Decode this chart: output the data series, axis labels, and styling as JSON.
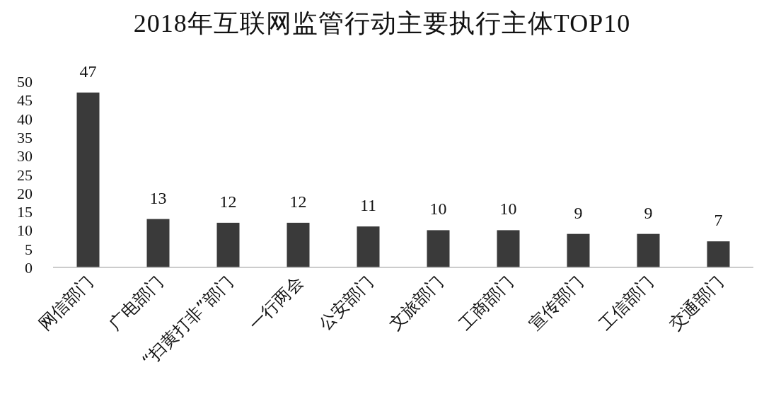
{
  "chart_data": {
    "type": "bar",
    "title": "2018年互联网监管行动主要执行主体TOP10",
    "categories": [
      "网信部门",
      "广电部门",
      "“扫黄打非”部门",
      "一行两会",
      "公安部门",
      "文旅部门",
      "工商部门",
      "宣传部门",
      "工信部门",
      "交通部门"
    ],
    "values": [
      47,
      13,
      12,
      12,
      11,
      10,
      10,
      9,
      9,
      7
    ],
    "color": "#3a3a3a",
    "ylim": [
      0,
      50
    ],
    "yticks": [
      0,
      5,
      10,
      15,
      20,
      25,
      30,
      35,
      40,
      45,
      50
    ],
    "data_labels": true
  }
}
